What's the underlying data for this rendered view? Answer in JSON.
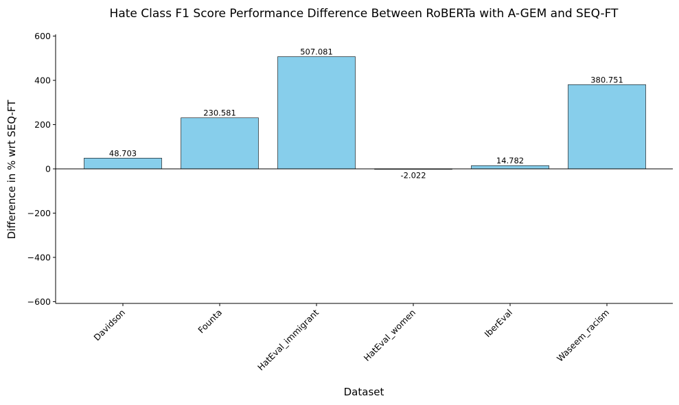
{
  "chart_data": {
    "type": "bar",
    "title": "Hate Class F1 Score Performance Difference Between RoBERTa with A-GEM and SEQ-FT",
    "xlabel": "Dataset",
    "ylabel": "Difference in % wrt SEQ-FT",
    "categories": [
      "Davidson",
      "Founta",
      "HatEval_immigrant",
      "HatEval_women",
      "IberEval",
      "Waseem_racism"
    ],
    "values": [
      48.703,
      230.581,
      507.081,
      -2.022,
      14.782,
      380.751
    ],
    "value_labels": [
      "48.703",
      "230.581",
      "507.081",
      "-2.022",
      "14.782",
      "380.751"
    ],
    "ylim": [
      -608,
      608
    ],
    "yticks": [
      -600,
      -400,
      -200,
      0,
      200,
      400,
      600
    ],
    "ytick_labels": [
      "−600",
      "−400",
      "−200",
      "0",
      "200",
      "400",
      "600"
    ],
    "grid": false,
    "zero_line": true,
    "colors": {
      "bar_fill": "#87CEEB",
      "bar_edge": "#000000"
    }
  }
}
